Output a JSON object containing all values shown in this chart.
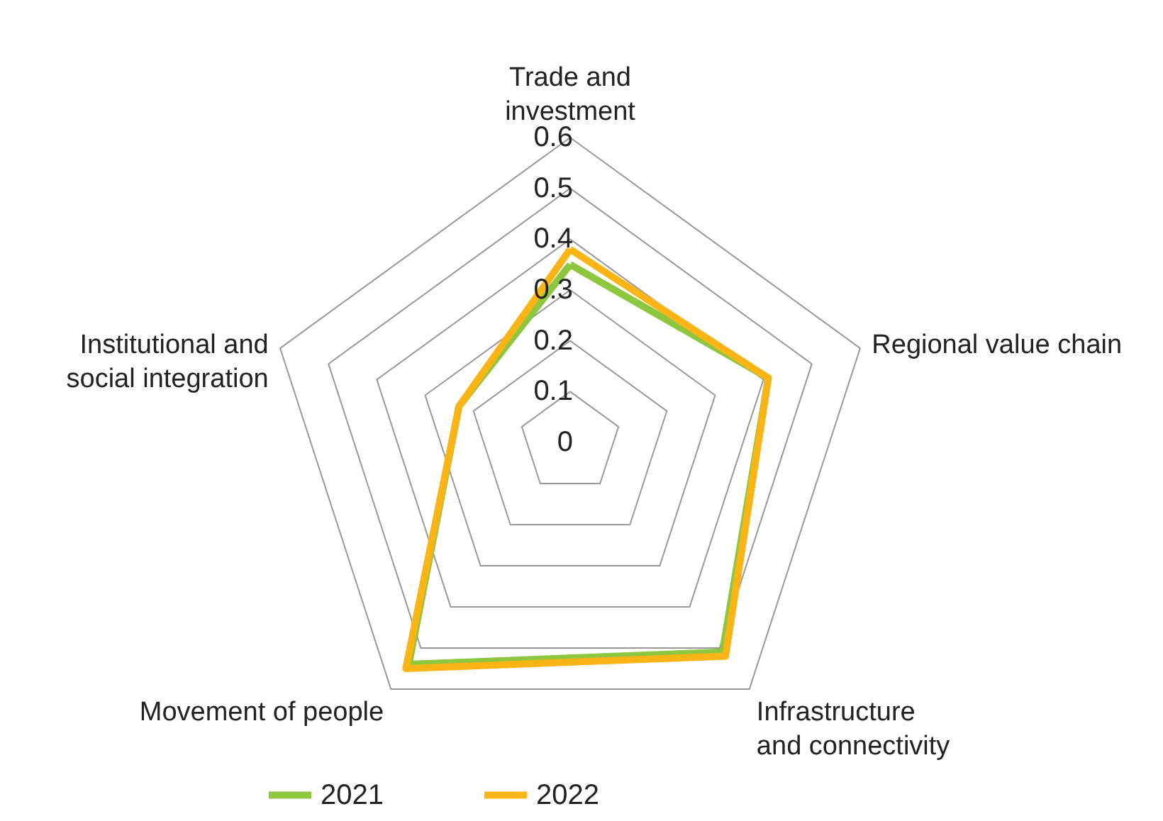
{
  "chart_data": {
    "type": "radar",
    "categories": [
      "Trade and\ninvestment",
      "Regional value chain",
      "Infrastructure\nand connectivity",
      "Movement of people",
      "Institutional and\nsocial integration"
    ],
    "series": [
      {
        "name": "2021",
        "color": "#8dc63f",
        "values": [
          0.35,
          0.41,
          0.51,
          0.54,
          0.23
        ]
      },
      {
        "name": "2022",
        "color": "#fbb416",
        "values": [
          0.38,
          0.41,
          0.52,
          0.55,
          0.23
        ]
      }
    ],
    "ylim": [
      0,
      0.6
    ],
    "yticks": [
      0,
      0.1,
      0.2,
      0.3,
      0.4,
      0.5,
      0.6
    ],
    "grid": true,
    "legend": "bottom"
  }
}
